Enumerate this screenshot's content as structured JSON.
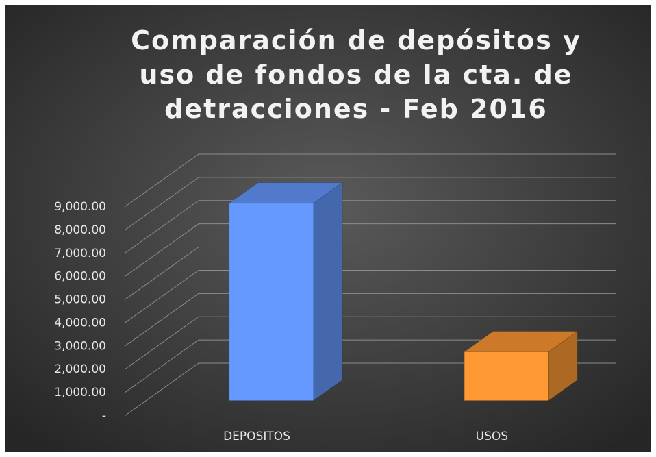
{
  "chart_data": {
    "type": "bar3d",
    "title": "Comparación de depósitos y uso de fondos de la cta. de detracciones - Feb 2016",
    "categories": [
      "DEPOSITOS",
      "USOS"
    ],
    "values": [
      8500,
      2100
    ],
    "colors": [
      "#6699ff",
      "#ff9933"
    ],
    "ylim": [
      0,
      9000
    ],
    "yticks": [
      {
        "value": 0,
        "label": "-"
      },
      {
        "value": 1000,
        "label": "1,000.00"
      },
      {
        "value": 2000,
        "label": "2,000.00"
      },
      {
        "value": 3000,
        "label": "3,000.00"
      },
      {
        "value": 4000,
        "label": "4,000.00"
      },
      {
        "value": 5000,
        "label": "5,000.00"
      },
      {
        "value": 6000,
        "label": "6,000.00"
      },
      {
        "value": 7000,
        "label": "7,000.00"
      },
      {
        "value": 8000,
        "label": "8,000.00"
      },
      {
        "value": 9000,
        "label": "9,000.00"
      }
    ],
    "grid": true
  }
}
